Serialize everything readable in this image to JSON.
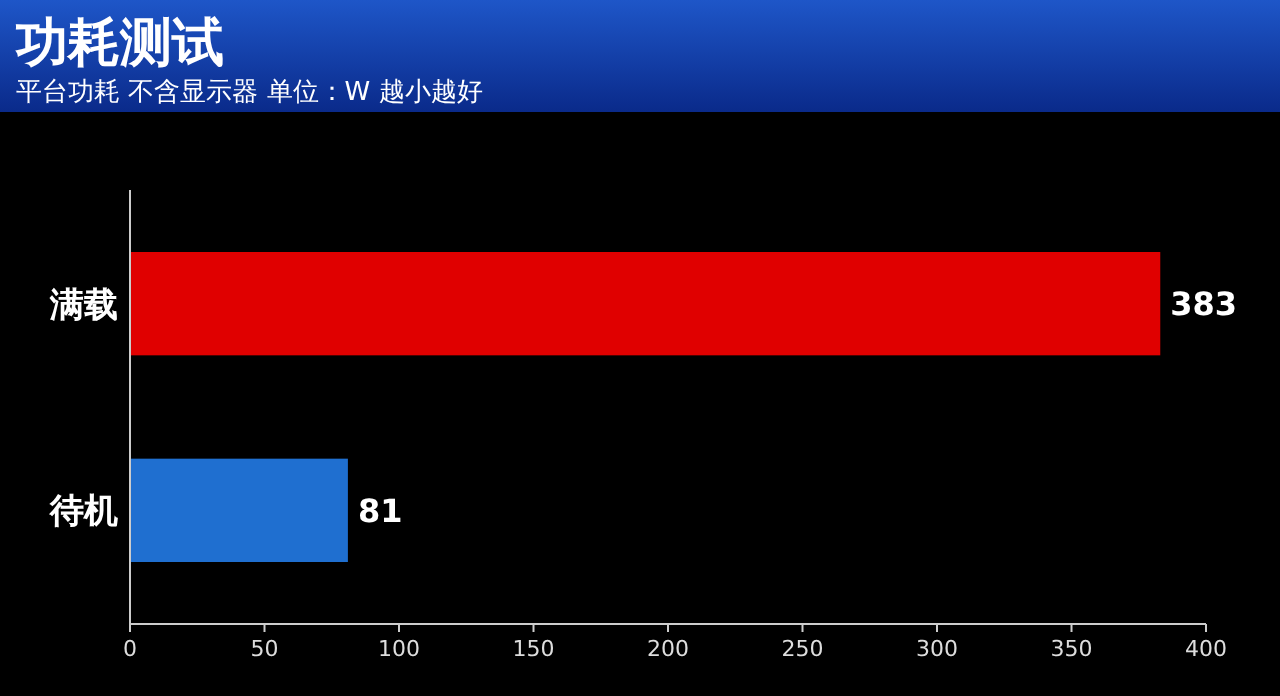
{
  "chart_data": {
    "type": "bar",
    "orientation": "horizontal",
    "title": "功耗测试",
    "subtitle": "平台功耗 不含显示器 单位：W 越小越好",
    "categories": [
      "满载",
      "待机"
    ],
    "values": [
      383,
      81
    ],
    "colors": [
      "#e00000",
      "#1f6fd0"
    ],
    "xlim": [
      0,
      400
    ],
    "xticks": [
      0,
      50,
      100,
      150,
      200,
      250,
      300,
      350,
      400
    ],
    "data_labels": true
  }
}
